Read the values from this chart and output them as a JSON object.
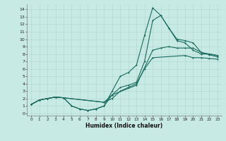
{
  "xlabel": "Humidex (Indice chaleur)",
  "bg_color": "#c8eae5",
  "line_color": "#1a6b5e",
  "grid_color": "#b0d4ce",
  "xlim": [
    -0.5,
    23.5
  ],
  "ylim": [
    -0.3,
    14.7
  ],
  "xticks": [
    0,
    1,
    2,
    3,
    4,
    5,
    6,
    7,
    8,
    9,
    10,
    11,
    12,
    13,
    14,
    15,
    16,
    17,
    18,
    19,
    20,
    21,
    22,
    23
  ],
  "yticks": [
    0,
    1,
    2,
    3,
    4,
    5,
    6,
    7,
    8,
    9,
    10,
    11,
    12,
    13,
    14
  ],
  "curve1_x": [
    0,
    1,
    2,
    3,
    4,
    5,
    6,
    7,
    8,
    9,
    10,
    11,
    12,
    13,
    14,
    15,
    16,
    17,
    18,
    19,
    20,
    21,
    22,
    23
  ],
  "curve1_y": [
    1.2,
    1.8,
    2.0,
    2.2,
    2.1,
    1.0,
    0.6,
    0.4,
    0.6,
    1.0,
    2.5,
    3.5,
    3.8,
    4.2,
    7.0,
    12.5,
    13.2,
    11.5,
    10.0,
    9.8,
    9.5,
    8.2,
    8.0,
    7.8
  ],
  "curve2_x": [
    0,
    1,
    2,
    3,
    4,
    5,
    6,
    7,
    8,
    9,
    10,
    11,
    12,
    13,
    14,
    15,
    16,
    17,
    18,
    19,
    20,
    21,
    22,
    23
  ],
  "curve2_y": [
    1.2,
    1.8,
    2.0,
    2.2,
    2.1,
    1.0,
    0.6,
    0.4,
    0.6,
    1.0,
    3.0,
    5.0,
    5.5,
    6.5,
    10.5,
    14.2,
    13.2,
    11.5,
    9.8,
    9.5,
    8.5,
    8.0,
    8.0,
    7.8
  ],
  "curve3_x": [
    0,
    1,
    2,
    3,
    4,
    9,
    10,
    13,
    15,
    16,
    17,
    18,
    19,
    20,
    21,
    22,
    23
  ],
  "curve3_y": [
    1.2,
    1.8,
    2.0,
    2.2,
    2.1,
    1.5,
    2.5,
    3.8,
    8.5,
    8.8,
    9.0,
    8.8,
    8.8,
    8.8,
    8.2,
    7.9,
    7.6
  ],
  "curve4_x": [
    0,
    1,
    2,
    3,
    4,
    9,
    10,
    11,
    12,
    13,
    14,
    15,
    19,
    20,
    21,
    22,
    23
  ],
  "curve4_y": [
    1.2,
    1.8,
    2.0,
    2.2,
    2.1,
    1.5,
    2.0,
    3.0,
    3.5,
    4.0,
    6.0,
    7.5,
    7.8,
    7.5,
    7.5,
    7.4,
    7.3
  ]
}
